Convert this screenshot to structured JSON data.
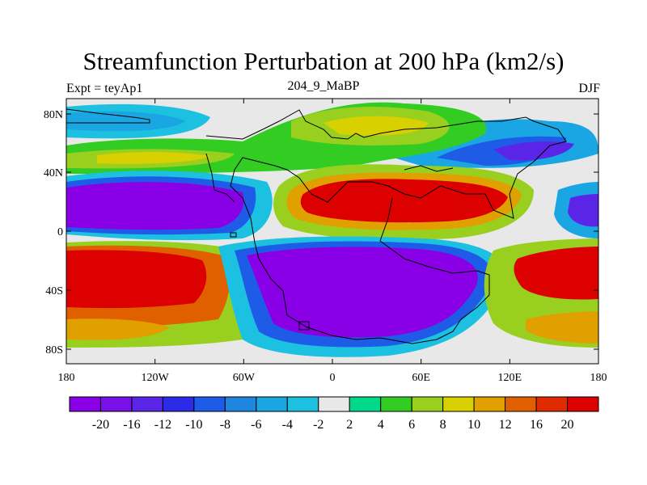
{
  "figure": {
    "title": "Streamfunction Perturbation at 200 hPa (km2/s)",
    "left_subtitle": "Expt = teyAp1",
    "center_subtitle": "204_9_MaBP",
    "right_subtitle": "DJF"
  },
  "axes": {
    "x_ticks": [
      "180",
      "120W",
      "60W",
      "0",
      "60E",
      "120E",
      "180"
    ],
    "y_ticks": [
      "80N",
      "40N",
      "0",
      "40S",
      "80S"
    ]
  },
  "colorbar": {
    "labels": [
      "-20",
      "-16",
      "-12",
      "-10",
      "-8",
      "-6",
      "-4",
      "-2",
      "2",
      "4",
      "6",
      "8",
      "10",
      "12",
      "16",
      "20"
    ],
    "colors": [
      "#8a00e6",
      "#7a10e8",
      "#5a25e6",
      "#2c2ce8",
      "#1e5ce8",
      "#1f86e0",
      "#1aa6e3",
      "#1cc0e0",
      "#e8e8e8",
      "#00d88a",
      "#33cc22",
      "#99d020",
      "#d8d000",
      "#e0a000",
      "#e06000",
      "#e02a00",
      "#dc0000"
    ]
  },
  "map_fields": {
    "background_color": "#e8e8e8",
    "negative_centers": [
      "Pacific tropics",
      "South Africa/Indian Ocean"
    ],
    "positive_centers": [
      "Middle East/Asia",
      "South Pacific"
    ]
  }
}
